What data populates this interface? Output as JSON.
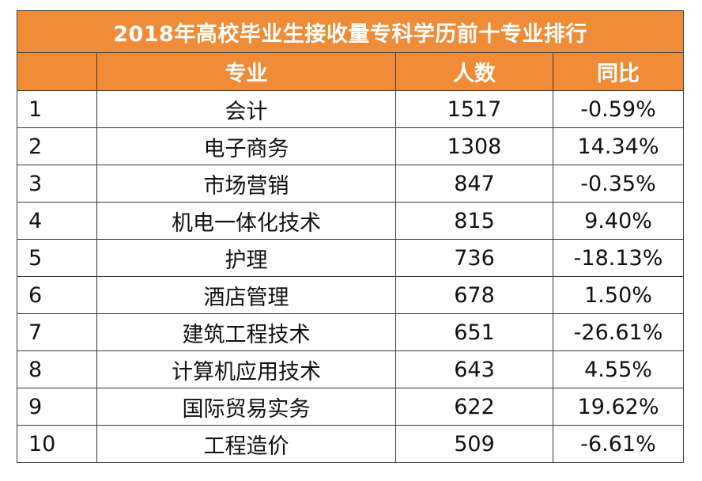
{
  "colors": {
    "header_bg": "#F08C37",
    "header_text": "#FFFFFF",
    "border": "#3A3A3A",
    "body_text": "#111111"
  },
  "table": {
    "title": "2018年高校毕业生接收量专科学历前十专业排行",
    "headers": [
      "",
      "专业",
      "人数",
      "同比"
    ],
    "rows": [
      {
        "rank": "1",
        "major": "会计",
        "count": "1517",
        "yoy": "-0.59%"
      },
      {
        "rank": "2",
        "major": "电子商务",
        "count": "1308",
        "yoy": "14.34%"
      },
      {
        "rank": "3",
        "major": "市场营销",
        "count": "847",
        "yoy": "-0.35%"
      },
      {
        "rank": "4",
        "major": "机电一体化技术",
        "count": "815",
        "yoy": "9.40%"
      },
      {
        "rank": "5",
        "major": "护理",
        "count": "736",
        "yoy": "-18.13%"
      },
      {
        "rank": "6",
        "major": "酒店管理",
        "count": "678",
        "yoy": "1.50%"
      },
      {
        "rank": "7",
        "major": "建筑工程技术",
        "count": "651",
        "yoy": "-26.61%"
      },
      {
        "rank": "8",
        "major": "计算机应用技术",
        "count": "643",
        "yoy": "4.55%"
      },
      {
        "rank": "9",
        "major": "国际贸易实务",
        "count": "622",
        "yoy": "19.62%"
      },
      {
        "rank": "10",
        "major": "工程造价",
        "count": "509",
        "yoy": "-6.61%"
      }
    ]
  }
}
